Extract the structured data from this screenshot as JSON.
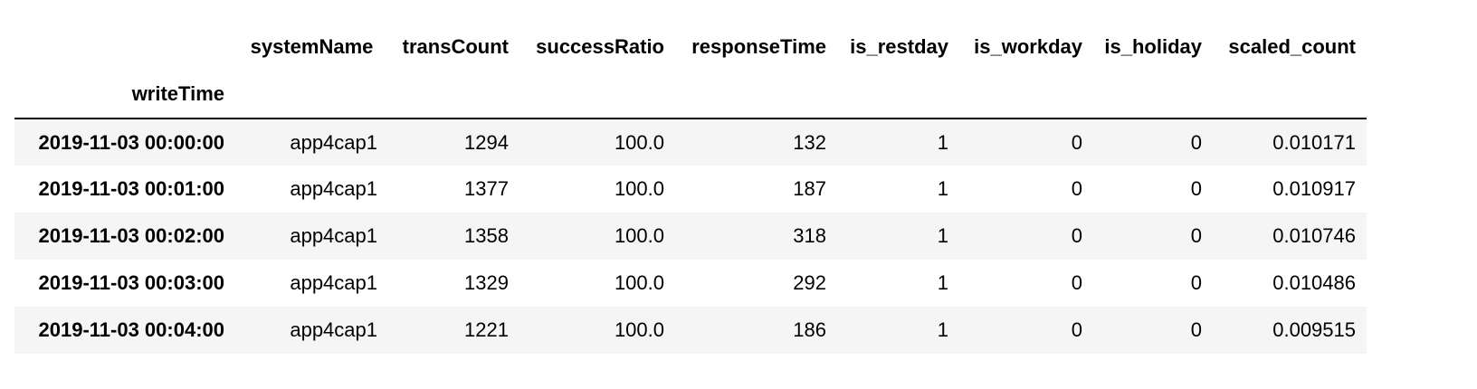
{
  "table": {
    "index_name": "writeTime",
    "columns": [
      {
        "key": "systemName",
        "label": "systemName"
      },
      {
        "key": "transCount",
        "label": "transCount"
      },
      {
        "key": "successRatio",
        "label": "successRatio"
      },
      {
        "key": "responseTime",
        "label": "responseTime"
      },
      {
        "key": "is_restday",
        "label": "is_restday"
      },
      {
        "key": "is_workday",
        "label": "is_workday"
      },
      {
        "key": "is_holiday",
        "label": "is_holiday"
      },
      {
        "key": "scaled_count",
        "label": "scaled_count"
      }
    ],
    "rows": [
      {
        "index": "2019-11-03 00:00:00",
        "values": [
          "app4cap1",
          "1294",
          "100.0",
          "132",
          "1",
          "0",
          "0",
          "0.010171"
        ]
      },
      {
        "index": "2019-11-03 00:01:00",
        "values": [
          "app4cap1",
          "1377",
          "100.0",
          "187",
          "1",
          "0",
          "0",
          "0.010917"
        ]
      },
      {
        "index": "2019-11-03 00:02:00",
        "values": [
          "app4cap1",
          "1358",
          "100.0",
          "318",
          "1",
          "0",
          "0",
          "0.010746"
        ]
      },
      {
        "index": "2019-11-03 00:03:00",
        "values": [
          "app4cap1",
          "1329",
          "100.0",
          "292",
          "1",
          "0",
          "0",
          "0.010486"
        ]
      },
      {
        "index": "2019-11-03 00:04:00",
        "values": [
          "app4cap1",
          "1221",
          "100.0",
          "186",
          "1",
          "0",
          "0",
          "0.009515"
        ]
      }
    ]
  },
  "colors": {
    "row_stripe": "#f5f5f5",
    "header_rule": "#000000",
    "text": "#000000"
  }
}
